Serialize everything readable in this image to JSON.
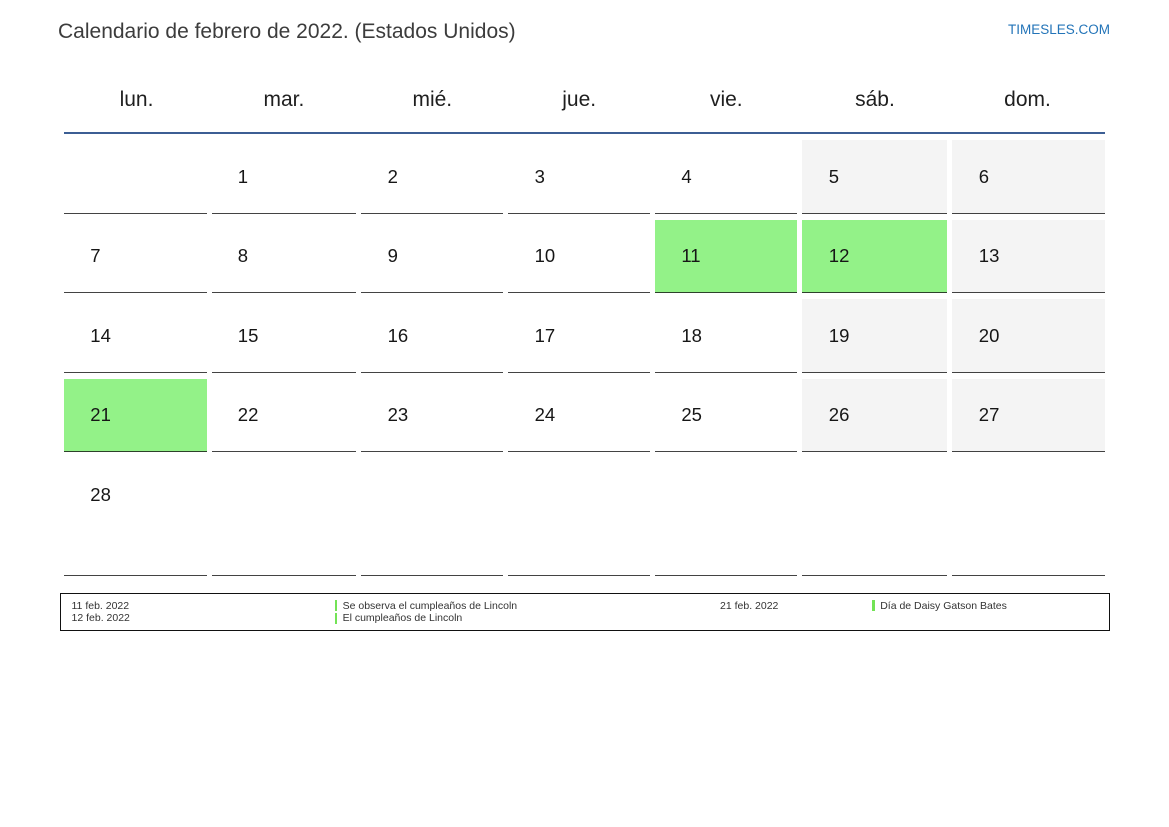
{
  "page": {
    "title": "Calendario de febrero de 2022. (Estados Unidos)",
    "brand": "TIMESLES.COM"
  },
  "calendar": {
    "weekdays": [
      "lun.",
      "mar.",
      "mié.",
      "jue.",
      "vie.",
      "sáb.",
      "dom."
    ],
    "cells": [
      {
        "day": "",
        "type": "empty"
      },
      {
        "day": "1",
        "type": "normal"
      },
      {
        "day": "2",
        "type": "normal"
      },
      {
        "day": "3",
        "type": "normal"
      },
      {
        "day": "4",
        "type": "normal"
      },
      {
        "day": "5",
        "type": "weekend"
      },
      {
        "day": "6",
        "type": "weekend"
      },
      {
        "day": "7",
        "type": "normal"
      },
      {
        "day": "8",
        "type": "normal"
      },
      {
        "day": "9",
        "type": "normal"
      },
      {
        "day": "10",
        "type": "normal"
      },
      {
        "day": "11",
        "type": "holiday"
      },
      {
        "day": "12",
        "type": "holiday"
      },
      {
        "day": "13",
        "type": "weekend"
      },
      {
        "day": "14",
        "type": "normal"
      },
      {
        "day": "15",
        "type": "normal"
      },
      {
        "day": "16",
        "type": "normal"
      },
      {
        "day": "17",
        "type": "normal"
      },
      {
        "day": "18",
        "type": "normal"
      },
      {
        "day": "19",
        "type": "weekend"
      },
      {
        "day": "20",
        "type": "weekend"
      },
      {
        "day": "21",
        "type": "holiday"
      },
      {
        "day": "22",
        "type": "normal"
      },
      {
        "day": "23",
        "type": "normal"
      },
      {
        "day": "24",
        "type": "normal"
      },
      {
        "day": "25",
        "type": "normal"
      },
      {
        "day": "26",
        "type": "weekend"
      },
      {
        "day": "27",
        "type": "weekend"
      },
      {
        "day": "28",
        "type": "normal"
      },
      {
        "day": "",
        "type": "empty"
      },
      {
        "day": "",
        "type": "empty"
      },
      {
        "day": "",
        "type": "empty"
      },
      {
        "day": "",
        "type": "empty"
      },
      {
        "day": "",
        "type": "empty"
      },
      {
        "day": "",
        "type": "empty"
      }
    ]
  },
  "legend": {
    "groups": [
      {
        "dates": [
          "11 feb. 2022",
          "12 feb. 2022"
        ],
        "events": [
          "Se observa el cumpleaños de Lincoln",
          "El cumpleaños de Lincoln"
        ]
      },
      {
        "dates": [
          "21 feb. 2022"
        ],
        "events": [
          "Día de Daisy Gatson Bates"
        ]
      }
    ]
  },
  "colors": {
    "holiday_cell": "#93f288",
    "weekend_cell": "#f4f4f4",
    "header_rule": "#3c5e94",
    "brand_link": "#2374b8",
    "event_bar": "#73e356"
  }
}
